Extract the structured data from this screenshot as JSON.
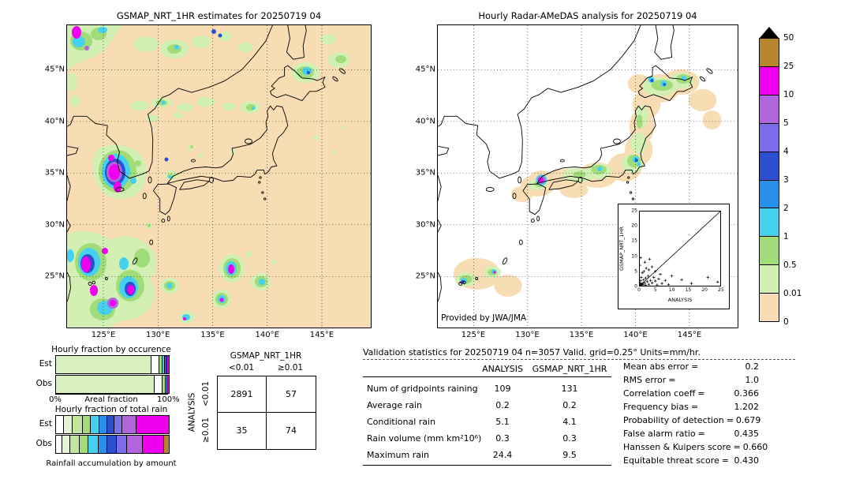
{
  "colorbar": {
    "tick_labels": [
      "50",
      "25",
      "10",
      "5",
      "4",
      "3",
      "2",
      "1",
      "0.5",
      "0.01",
      "0"
    ],
    "segment_colors_top_to_bottom": [
      "#b8862d",
      "#ee00ee",
      "#b164dc",
      "#7a6fe8",
      "#2a50d0",
      "#2a8fe8",
      "#45d0f0",
      "#a0dc78",
      "#d2efb4",
      "#f8dcb4"
    ],
    "over_range_color": "#000000",
    "units": "mm/hr"
  },
  "stats": {
    "header": "Validation statistics for 20250719 04  n=3057 Valid. grid=0.25° Units=mm/hr.",
    "columns": [
      "ANALYSIS",
      "GSMAP_NRT_1HR"
    ],
    "rows": [
      {
        "label": "Num of gridpoints raining",
        "analysis": "109",
        "gsmap": "131"
      },
      {
        "label": "Average rain",
        "analysis": "0.2",
        "gsmap": "0.2"
      },
      {
        "label": "Conditional rain",
        "analysis": "5.1",
        "gsmap": "4.1"
      },
      {
        "label": "Rain volume (mm km²10⁶)",
        "analysis": "0.3",
        "gsmap": "0.3"
      },
      {
        "label": "Maximum rain",
        "analysis": "24.4",
        "gsmap": "9.5"
      }
    ],
    "eq": "=",
    "metrics": [
      {
        "label": "Mean abs error",
        "value": "0.2"
      },
      {
        "label": "RMS error",
        "value": "1.0"
      },
      {
        "label": "Correlation coeff",
        "value": "0.366"
      },
      {
        "label": "Frequency bias",
        "value": "1.202"
      },
      {
        "label": "Probability of detection",
        "value": "0.679"
      },
      {
        "label": "False alarm ratio",
        "value": "0.435"
      },
      {
        "label": "Hanssen & Kuipers score",
        "value": "0.660"
      },
      {
        "label": "Equitable threat score",
        "value": "0.430"
      }
    ]
  },
  "chart_data": [
    {
      "id": "gsmap_map",
      "type": "heatmap",
      "title": "GSMAP_NRT_1HR estimates for 20250719 04",
      "x_ticks": [
        "125°E",
        "130°E",
        "135°E",
        "140°E",
        "145°E"
      ],
      "y_ticks_top_to_bottom": [
        "45°N",
        "40°N",
        "35°N",
        "30°N",
        "25°N"
      ],
      "units": "mm/hr",
      "value_boundaries": [
        0,
        0.01,
        0.5,
        1,
        2,
        3,
        4,
        5,
        10,
        25,
        50
      ],
      "extent": {
        "lon": [
          121.7,
          149.5
        ],
        "lat": [
          20,
          49.3
        ]
      }
    },
    {
      "id": "radar_amedas_map",
      "type": "heatmap",
      "title": "Hourly Radar-AMeDAS analysis for 20250719 04",
      "provided_by": "Provided by JWA/JMA",
      "x_ticks": [
        "125°E",
        "130°E",
        "135°E",
        "140°E",
        "145°E"
      ],
      "y_ticks_top_to_bottom": [
        "45°N",
        "40°N",
        "35°N",
        "30°N",
        "25°N"
      ],
      "units": "mm/hr",
      "value_boundaries": [
        0,
        0.01,
        0.5,
        1,
        2,
        3,
        4,
        5,
        10,
        25,
        50
      ],
      "extent": {
        "lon": [
          121.7,
          149.5
        ],
        "lat": [
          20,
          49.3
        ]
      }
    },
    {
      "id": "inset_scatter",
      "type": "scatter",
      "xlabel": "ANALYSIS",
      "ylabel": "GSMAP_NRT_1HR",
      "xlim": [
        0,
        25
      ],
      "ylim": [
        0,
        25
      ],
      "x_ticks": [
        "0",
        "5",
        "10",
        "15",
        "20",
        "25"
      ],
      "y_ticks_top_to_bottom": [
        "25",
        "20",
        "15",
        "10",
        "5",
        "0"
      ],
      "points": [
        [
          0.1,
          0.1
        ],
        [
          0.2,
          0.5
        ],
        [
          0.3,
          1.2
        ],
        [
          0.4,
          0.2
        ],
        [
          0.5,
          2
        ],
        [
          0.6,
          0.8
        ],
        [
          0.7,
          3
        ],
        [
          0.8,
          0.3
        ],
        [
          1,
          1
        ],
        [
          1,
          4.5
        ],
        [
          1.2,
          0.6
        ],
        [
          1.4,
          2.2
        ],
        [
          1.5,
          5
        ],
        [
          1.7,
          1.1
        ],
        [
          2,
          0.4
        ],
        [
          2,
          2.8
        ],
        [
          2.2,
          6
        ],
        [
          2.5,
          1.6
        ],
        [
          2.8,
          3.4
        ],
        [
          3,
          0.7
        ],
        [
          3,
          5.5
        ],
        [
          3.2,
          9
        ],
        [
          3.5,
          2
        ],
        [
          4,
          1.2
        ],
        [
          4,
          6.5
        ],
        [
          4.5,
          3
        ],
        [
          5,
          1.8
        ],
        [
          5,
          5
        ],
        [
          5.5,
          0.5
        ],
        [
          6,
          2.5
        ],
        [
          6.5,
          4
        ],
        [
          7,
          1
        ],
        [
          8,
          2
        ],
        [
          9,
          0.6
        ],
        [
          10,
          3.5
        ],
        [
          13,
          2.2
        ],
        [
          16,
          1
        ],
        [
          21,
          3
        ],
        [
          24,
          1.5
        ],
        [
          0.2,
          7
        ],
        [
          0.5,
          9.5
        ],
        [
          1.8,
          8
        ]
      ]
    },
    {
      "id": "contingency_table",
      "type": "table",
      "col_group": "GSMAP_NRT_1HR",
      "row_group": "ANALYSIS",
      "col_labels": [
        "<0.01",
        "≥0.01"
      ],
      "row_labels": [
        "<0.01",
        "≥0.01"
      ],
      "values": [
        [
          2891,
          57
        ],
        [
          35,
          74
        ]
      ]
    },
    {
      "id": "occurrence_bars",
      "type": "bar",
      "title": "Hourly fraction by occurence",
      "rows": [
        "Est",
        "Obs"
      ],
      "axis_left": "0%",
      "axis_label": "Areal fraction",
      "axis_right": "100%",
      "est": [
        {
          "color": "#d8efc0",
          "pct": 84
        },
        {
          "color": "#ffffff",
          "pct": 7
        },
        {
          "color": "#a0dc78",
          "pct": 3
        },
        {
          "color": "#45d0f0",
          "pct": 2
        },
        {
          "color": "#2a50d0",
          "pct": 2
        },
        {
          "color": "#ee00ee",
          "pct": 2
        }
      ],
      "obs": [
        {
          "color": "#d8efc0",
          "pct": 87
        },
        {
          "color": "#ffffff",
          "pct": 7
        },
        {
          "color": "#a0dc78",
          "pct": 2.5
        },
        {
          "color": "#45d0f0",
          "pct": 1.5
        },
        {
          "color": "#ee00ee",
          "pct": 2
        }
      ]
    },
    {
      "id": "total_rain_bars",
      "type": "bar",
      "title": "Hourly fraction of total rain",
      "rows": [
        "Est",
        "Obs"
      ],
      "caption": "Rainfall accumulation by amount",
      "est": [
        {
          "color": "#ffffff",
          "pct": 6
        },
        {
          "color": "#e4f4d4",
          "pct": 8
        },
        {
          "color": "#c2e79c",
          "pct": 9
        },
        {
          "color": "#a0dc78",
          "pct": 7
        },
        {
          "color": "#45d0f0",
          "pct": 8
        },
        {
          "color": "#2a8fe8",
          "pct": 7
        },
        {
          "color": "#2a50d0",
          "pct": 6
        },
        {
          "color": "#7a6fe8",
          "pct": 7
        },
        {
          "color": "#b164dc",
          "pct": 13
        },
        {
          "color": "#ee00ee",
          "pct": 29
        }
      ],
      "obs": [
        {
          "color": "#ffffff",
          "pct": 5
        },
        {
          "color": "#e4f4d4",
          "pct": 7
        },
        {
          "color": "#c2e79c",
          "pct": 8
        },
        {
          "color": "#a0dc78",
          "pct": 8
        },
        {
          "color": "#45d0f0",
          "pct": 9
        },
        {
          "color": "#2a8fe8",
          "pct": 8
        },
        {
          "color": "#2a50d0",
          "pct": 8
        },
        {
          "color": "#7a6fe8",
          "pct": 9
        },
        {
          "color": "#b164dc",
          "pct": 14
        },
        {
          "color": "#ee00ee",
          "pct": 19
        },
        {
          "color": "#b8862d",
          "pct": 5
        }
      ]
    }
  ]
}
